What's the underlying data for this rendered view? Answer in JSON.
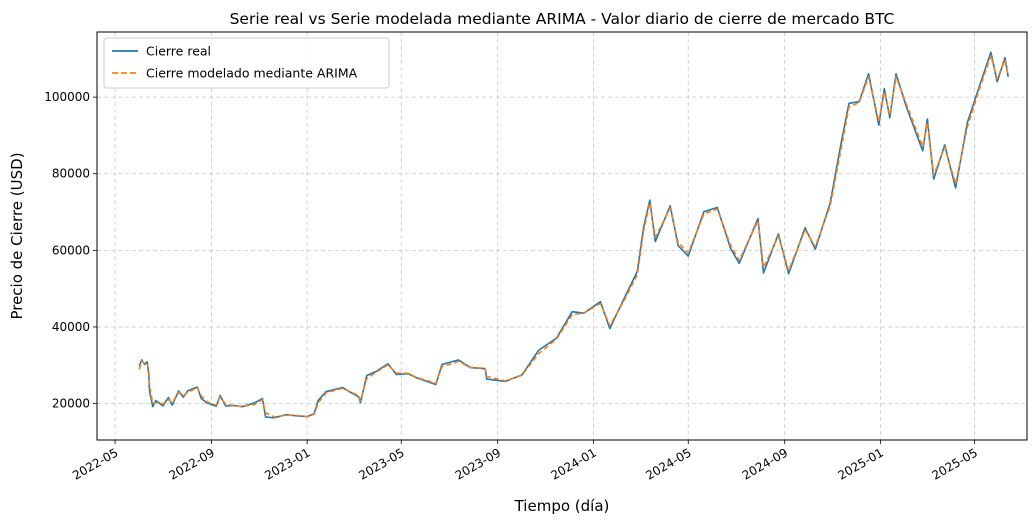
{
  "chart_data": {
    "type": "line",
    "title": "Serie real vs Serie modelada mediante ARIMA - Valor diario de cierre de mercado BTC",
    "xlabel": "Tiempo (día)",
    "ylabel": "Precio de Cierre (USD)",
    "xlim": [
      "2022-04-08",
      "2025-07-07"
    ],
    "ylim": [
      10500,
      117000
    ],
    "grid": true,
    "legend_position": "top-left",
    "x_ticks": [
      "2022-05",
      "2022-09",
      "2023-01",
      "2023-05",
      "2023-09",
      "2024-01",
      "2024-05",
      "2024-09",
      "2025-01",
      "2025-05"
    ],
    "y_ticks": [
      20000,
      40000,
      60000,
      80000,
      100000
    ],
    "series": [
      {
        "name": "Cierre real",
        "color": "#1f77b4",
        "style": "solid",
        "points": [
          [
            "2022-06-01",
            29800
          ],
          [
            "2022-06-04",
            31400
          ],
          [
            "2022-06-08",
            30200
          ],
          [
            "2022-06-11",
            30900
          ],
          [
            "2022-06-13",
            27600
          ],
          [
            "2022-06-14",
            23400
          ],
          [
            "2022-06-18",
            19200
          ],
          [
            "2022-06-22",
            20800
          ],
          [
            "2022-07-01",
            19400
          ],
          [
            "2022-07-08",
            21600
          ],
          [
            "2022-07-13",
            19600
          ],
          [
            "2022-07-21",
            23300
          ],
          [
            "2022-07-27",
            21700
          ],
          [
            "2022-08-02",
            23400
          ],
          [
            "2022-08-14",
            24300
          ],
          [
            "2022-08-19",
            21300
          ],
          [
            "2022-08-26",
            20200
          ],
          [
            "2022-09-07",
            19300
          ],
          [
            "2022-09-12",
            22100
          ],
          [
            "2022-09-19",
            19400
          ],
          [
            "2022-10-01",
            19500
          ],
          [
            "2022-10-10",
            19200
          ],
          [
            "2022-10-25",
            20100
          ],
          [
            "2022-11-05",
            21300
          ],
          [
            "2022-11-09",
            16500
          ],
          [
            "2022-11-20",
            16300
          ],
          [
            "2022-12-05",
            17100
          ],
          [
            "2022-12-20",
            16800
          ],
          [
            "2023-01-01",
            16600
          ],
          [
            "2023-01-10",
            17400
          ],
          [
            "2023-01-15",
            20800
          ],
          [
            "2023-01-25",
            23100
          ],
          [
            "2023-02-15",
            24200
          ],
          [
            "2023-03-08",
            21700
          ],
          [
            "2023-03-10",
            20200
          ],
          [
            "2023-03-18",
            27300
          ],
          [
            "2023-03-30",
            28400
          ],
          [
            "2023-04-14",
            30400
          ],
          [
            "2023-04-25",
            27600
          ],
          [
            "2023-05-10",
            27800
          ],
          [
            "2023-05-20",
            26800
          ],
          [
            "2023-06-14",
            25000
          ],
          [
            "2023-06-22",
            30200
          ],
          [
            "2023-07-13",
            31400
          ],
          [
            "2023-07-28",
            29400
          ],
          [
            "2023-08-16",
            29100
          ],
          [
            "2023-08-18",
            26400
          ],
          [
            "2023-09-11",
            25800
          ],
          [
            "2023-10-02",
            27500
          ],
          [
            "2023-10-23",
            33900
          ],
          [
            "2023-11-15",
            37100
          ],
          [
            "2023-12-05",
            44000
          ],
          [
            "2023-12-20",
            43600
          ],
          [
            "2024-01-10",
            46600
          ],
          [
            "2024-01-22",
            39600
          ],
          [
            "2024-02-09",
            47300
          ],
          [
            "2024-02-26",
            54500
          ],
          [
            "2024-03-05",
            66000
          ],
          [
            "2024-03-13",
            73100
          ],
          [
            "2024-03-20",
            62300
          ],
          [
            "2024-04-08",
            71600
          ],
          [
            "2024-04-18",
            61300
          ],
          [
            "2024-05-01",
            58500
          ],
          [
            "2024-05-21",
            70100
          ],
          [
            "2024-06-07",
            71200
          ],
          [
            "2024-06-24",
            60500
          ],
          [
            "2024-07-05",
            56600
          ],
          [
            "2024-07-29",
            68300
          ],
          [
            "2024-08-05",
            54100
          ],
          [
            "2024-08-24",
            64300
          ],
          [
            "2024-09-06",
            53900
          ],
          [
            "2024-09-27",
            65900
          ],
          [
            "2024-10-10",
            60300
          ],
          [
            "2024-10-29",
            72400
          ],
          [
            "2024-11-12",
            88100
          ],
          [
            "2024-11-22",
            98400
          ],
          [
            "2024-12-05",
            98800
          ],
          [
            "2024-12-17",
            106100
          ],
          [
            "2024-12-30",
            92700
          ],
          [
            "2025-01-06",
            102200
          ],
          [
            "2025-01-13",
            94600
          ],
          [
            "2025-01-21",
            106100
          ],
          [
            "2025-02-03",
            97600
          ],
          [
            "2025-02-24",
            86000
          ],
          [
            "2025-03-02",
            94300
          ],
          [
            "2025-03-10",
            78600
          ],
          [
            "2025-03-24",
            87500
          ],
          [
            "2025-04-07",
            76300
          ],
          [
            "2025-04-22",
            93400
          ],
          [
            "2025-05-08",
            103300
          ],
          [
            "2025-05-22",
            111700
          ],
          [
            "2025-05-30",
            104000
          ],
          [
            "2025-06-09",
            110300
          ],
          [
            "2025-06-13",
            105300
          ]
        ]
      },
      {
        "name": "Cierre modelado mediante ARIMA",
        "color": "#ff7f0e",
        "style": "dashed",
        "points": [
          [
            "2022-06-01",
            28900
          ],
          [
            "2022-06-04",
            31100
          ],
          [
            "2022-06-08",
            30500
          ],
          [
            "2022-06-11",
            30600
          ],
          [
            "2022-06-13",
            28900
          ],
          [
            "2022-06-14",
            24800
          ],
          [
            "2022-06-18",
            20100
          ],
          [
            "2022-06-22",
            20300
          ],
          [
            "2022-07-01",
            19900
          ],
          [
            "2022-07-08",
            21100
          ],
          [
            "2022-07-13",
            20200
          ],
          [
            "2022-07-21",
            22900
          ],
          [
            "2022-07-27",
            22100
          ],
          [
            "2022-08-02",
            23000
          ],
          [
            "2022-08-14",
            24100
          ],
          [
            "2022-08-19",
            22100
          ],
          [
            "2022-08-26",
            20500
          ],
          [
            "2022-09-07",
            19600
          ],
          [
            "2022-09-12",
            21700
          ],
          [
            "2022-09-19",
            19900
          ],
          [
            "2022-10-01",
            19400
          ],
          [
            "2022-10-10",
            19300
          ],
          [
            "2022-10-25",
            19700
          ],
          [
            "2022-11-05",
            21000
          ],
          [
            "2022-11-09",
            17600
          ],
          [
            "2022-11-20",
            16500
          ],
          [
            "2022-12-05",
            17000
          ],
          [
            "2022-12-20",
            16900
          ],
          [
            "2023-01-01",
            16600
          ],
          [
            "2023-01-10",
            17200
          ],
          [
            "2023-01-15",
            20100
          ],
          [
            "2023-01-25",
            22800
          ],
          [
            "2023-02-15",
            24000
          ],
          [
            "2023-03-08",
            22100
          ],
          [
            "2023-03-10",
            20700
          ],
          [
            "2023-03-18",
            26500
          ],
          [
            "2023-03-30",
            28200
          ],
          [
            "2023-04-14",
            30100
          ],
          [
            "2023-04-25",
            28000
          ],
          [
            "2023-05-10",
            27900
          ],
          [
            "2023-05-20",
            26900
          ],
          [
            "2023-06-14",
            25300
          ],
          [
            "2023-06-22",
            29600
          ],
          [
            "2023-07-13",
            31000
          ],
          [
            "2023-07-28",
            29500
          ],
          [
            "2023-08-16",
            29200
          ],
          [
            "2023-08-18",
            27100
          ],
          [
            "2023-09-11",
            25900
          ],
          [
            "2023-10-02",
            27400
          ],
          [
            "2023-10-23",
            33000
          ],
          [
            "2023-11-15",
            36800
          ],
          [
            "2023-12-05",
            43200
          ],
          [
            "2023-12-20",
            43700
          ],
          [
            "2024-01-10",
            46100
          ],
          [
            "2024-01-22",
            40400
          ],
          [
            "2024-02-09",
            46800
          ],
          [
            "2024-02-26",
            53600
          ],
          [
            "2024-03-05",
            65000
          ],
          [
            "2024-03-13",
            72400
          ],
          [
            "2024-03-20",
            63400
          ],
          [
            "2024-04-08",
            71000
          ],
          [
            "2024-04-18",
            62100
          ],
          [
            "2024-05-01",
            59300
          ],
          [
            "2024-05-21",
            69500
          ],
          [
            "2024-06-07",
            70800
          ],
          [
            "2024-06-24",
            61300
          ],
          [
            "2024-07-05",
            57400
          ],
          [
            "2024-07-29",
            67700
          ],
          [
            "2024-08-05",
            55500
          ],
          [
            "2024-08-24",
            63700
          ],
          [
            "2024-09-06",
            54800
          ],
          [
            "2024-09-27",
            65300
          ],
          [
            "2024-10-10",
            61000
          ],
          [
            "2024-10-29",
            71600
          ],
          [
            "2024-11-12",
            86600
          ],
          [
            "2024-11-22",
            97400
          ],
          [
            "2024-12-05",
            98600
          ],
          [
            "2024-12-17",
            105300
          ],
          [
            "2024-12-30",
            93700
          ],
          [
            "2025-01-06",
            101400
          ],
          [
            "2025-01-13",
            95300
          ],
          [
            "2025-01-21",
            105300
          ],
          [
            "2025-02-03",
            98300
          ],
          [
            "2025-02-24",
            87100
          ],
          [
            "2025-03-02",
            93300
          ],
          [
            "2025-03-10",
            79700
          ],
          [
            "2025-03-24",
            86900
          ],
          [
            "2025-04-07",
            77400
          ],
          [
            "2025-04-22",
            92200
          ],
          [
            "2025-05-08",
            102600
          ],
          [
            "2025-05-22",
            110800
          ],
          [
            "2025-05-30",
            104800
          ],
          [
            "2025-06-09",
            109600
          ],
          [
            "2025-06-13",
            105700
          ]
        ]
      }
    ]
  }
}
